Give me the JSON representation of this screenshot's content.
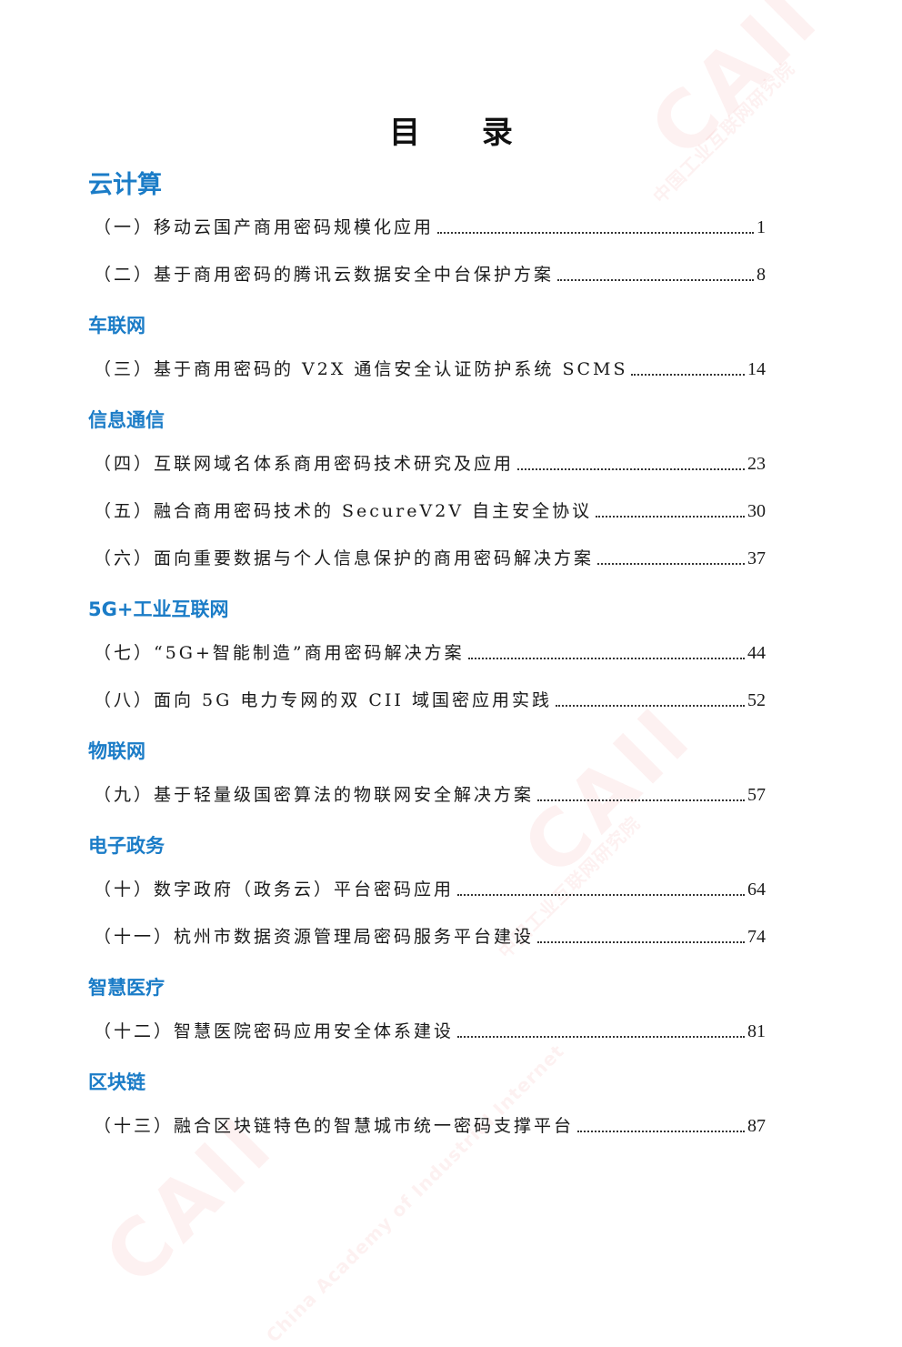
{
  "toc": {
    "title": "目 录",
    "sections": [
      {
        "heading": "云计算",
        "entries": [
          {
            "label": "（一）移动云国产商用密码规模化应用",
            "page": "1"
          },
          {
            "label": "（二）基于商用密码的腾讯云数据安全中台保护方案",
            "page": "8"
          }
        ]
      },
      {
        "heading": "车联网",
        "entries": [
          {
            "label": "（三）基于商用密码的 V2X 通信安全认证防护系统 SCMS",
            "page": "14"
          }
        ]
      },
      {
        "heading": "信息通信",
        "entries": [
          {
            "label": "（四）互联网域名体系商用密码技术研究及应用",
            "page": "23"
          },
          {
            "label": "（五）融合商用密码技术的 SecureV2V 自主安全协议",
            "page": "30"
          },
          {
            "label": "（六）面向重要数据与个人信息保护的商用密码解决方案",
            "page": "37"
          }
        ]
      },
      {
        "heading": "5G+工业互联网",
        "entries": [
          {
            "label": "（七）“5G+智能制造”商用密码解决方案",
            "page": "44"
          },
          {
            "label": "（八）面向 5G 电力专网的双 CII 域国密应用实践",
            "page": "52"
          }
        ]
      },
      {
        "heading": "物联网",
        "entries": [
          {
            "label": "（九）基于轻量级国密算法的物联网安全解决方案",
            "page": "57"
          }
        ]
      },
      {
        "heading": "电子政务",
        "entries": [
          {
            "label": "（十）数字政府（政务云）平台密码应用",
            "page": "64"
          },
          {
            "label": "（十一）杭州市数据资源管理局密码服务平台建设",
            "page": "74"
          }
        ]
      },
      {
        "heading": "智慧医疗",
        "entries": [
          {
            "label": "（十二）智慧医院密码应用安全体系建设",
            "page": "81"
          }
        ]
      },
      {
        "heading": "区块链",
        "entries": [
          {
            "label": "（十三）融合区块链特色的智慧城市统一密码支撑平台",
            "page": "87"
          }
        ]
      }
    ]
  },
  "watermark": {
    "logo": "CAII",
    "org_cn": "中国工业互联网研究院",
    "org_en": "China Academy of Industrial Internet"
  },
  "colors": {
    "heading": "#1b7cc7",
    "text": "#1a1a1a",
    "watermark": "#dc3c3c"
  }
}
